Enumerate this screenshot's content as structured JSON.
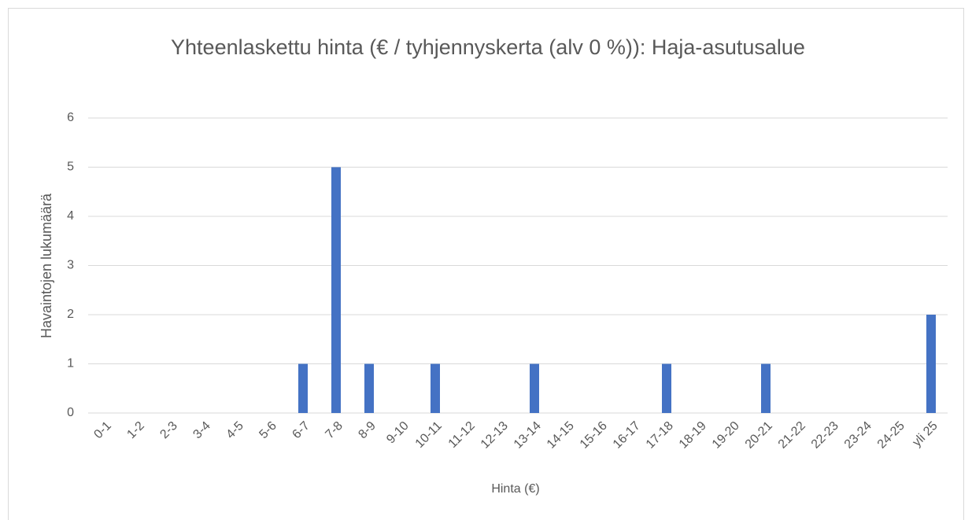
{
  "chart_data": {
    "type": "bar",
    "title": "Yhteenlaskettu hinta (€ / tyhjennyskerta (alv 0 %)): Haja-asutusalue",
    "x_label": "Hinta (€)",
    "y_label": "Havaintojen lukumäärä",
    "categories": [
      "0-1",
      "1-2",
      "2-3",
      "3-4",
      "4-5",
      "5-6",
      "6-7",
      "7-8",
      "8-9",
      "9-10",
      "10-11",
      "11-12",
      "12-13",
      "13-14",
      "14-15",
      "15-16",
      "16-17",
      "17-18",
      "18-19",
      "19-20",
      "20-21",
      "21-22",
      "22-23",
      "23-24",
      "24-25",
      "yli 25"
    ],
    "values": [
      0,
      0,
      0,
      0,
      0,
      0,
      1,
      5,
      1,
      0,
      1,
      0,
      0,
      1,
      0,
      0,
      0,
      1,
      0,
      0,
      1,
      0,
      0,
      0,
      0,
      2
    ],
    "color": "#4472c4",
    "ylim": [
      0,
      6
    ],
    "yticks": [
      0,
      1,
      2,
      3,
      4,
      5,
      6
    ],
    "grid": true
  }
}
